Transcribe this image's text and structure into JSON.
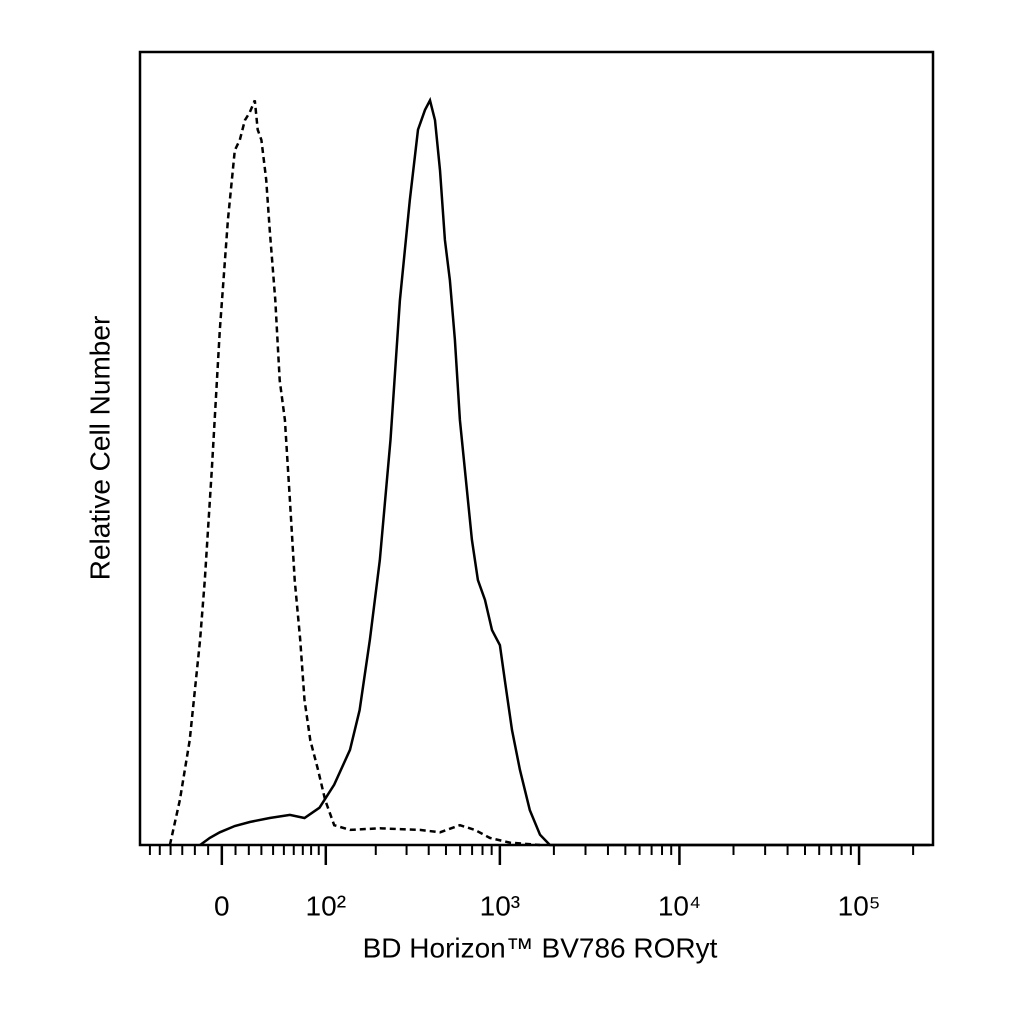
{
  "chart_data": {
    "type": "line",
    "xlabel": "BD Horizon™ BV786 RORyt",
    "ylabel": "Relative Cell Number",
    "xscale": "biexponential",
    "xlim": [
      -71,
      258000
    ],
    "ylim": [
      0,
      100
    ],
    "xticks": [
      0,
      {
        "value": 100,
        "label": "10²"
      },
      {
        "value": 1000,
        "label": "10³"
      },
      {
        "value": 10000,
        "label": "10⁴"
      },
      {
        "value": 100000,
        "label": "10⁵"
      }
    ],
    "xminorticks": [
      -60,
      -50,
      -40,
      -30,
      -20,
      -10,
      10,
      20,
      30,
      40,
      50,
      60,
      70,
      80,
      90,
      200,
      300,
      400,
      500,
      600,
      700,
      800,
      900,
      2000,
      3000,
      4000,
      5000,
      6000,
      7000,
      8000,
      9000,
      20000,
      30000,
      40000,
      50000,
      60000,
      70000,
      80000,
      90000,
      200000
    ],
    "series": [
      {
        "color": "#000000",
        "linestyle": "dashed",
        "x": [
          -40.6,
          -32,
          -24,
          -16,
          -12.5,
          -7.3,
          -1.5,
          4.4,
          9.5,
          13.2,
          17,
          20.8,
          24.7,
          27,
          30,
          34,
          37,
          42,
          46,
          51,
          56,
          61,
          67,
          72,
          79,
          89,
          99,
          113,
          141,
          211,
          357,
          463,
          598,
          726,
          879,
          1135,
          1673
        ],
        "values": [
          0,
          5.7,
          13.2,
          25.9,
          33.4,
          47.3,
          64.9,
          78.8,
          87.6,
          88.9,
          91.4,
          92.4,
          93.9,
          90.2,
          88.9,
          83.9,
          77.6,
          68.7,
          58.6,
          53.6,
          43.5,
          33.4,
          25.9,
          18.3,
          13.2,
          9.5,
          5.7,
          2.5,
          1.9,
          2.1,
          1.9,
          1.6,
          2.5,
          1.9,
          0.9,
          0.3,
          0
        ]
      },
      {
        "color": "#000000",
        "linestyle": "solid",
        "x": [
          -16,
          -8.8,
          -1.5,
          9.5,
          20.8,
          37,
          56,
          72,
          91,
          113,
          141,
          161,
          185,
          211,
          243,
          275,
          313,
          348,
          381,
          407,
          434,
          463,
          493,
          526,
          561,
          598,
          638,
          698,
          754,
          826,
          904,
          1001,
          1066,
          1168,
          1293,
          1469,
          1673,
          1900,
          248000
        ],
        "values": [
          0,
          0.9,
          1.6,
          2.4,
          2.9,
          3.4,
          3.8,
          3.4,
          4.7,
          7.6,
          12.0,
          17.0,
          25.9,
          35.9,
          51.1,
          68.7,
          81.3,
          90.2,
          92.7,
          93.9,
          91.4,
          85.1,
          76.3,
          71.2,
          63.7,
          53.6,
          47.3,
          38.5,
          33.4,
          30.9,
          27.1,
          25.2,
          20.8,
          14.5,
          9.5,
          4.4,
          1.3,
          0,
          0
        ]
      }
    ]
  }
}
